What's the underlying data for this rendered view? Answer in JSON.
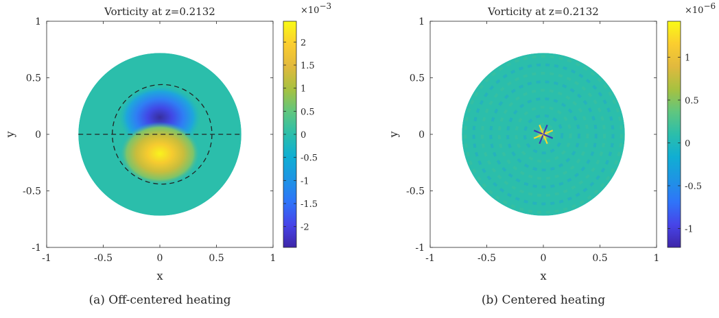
{
  "chart_data": [
    {
      "type": "heatmap",
      "title": "Vorticity at z=0.2132",
      "xlabel": "x",
      "ylabel": "y",
      "xlim": [
        -1,
        1
      ],
      "ylim": [
        -1,
        1
      ],
      "xticks": [
        "-1",
        "-0.5",
        "0",
        "0.5",
        "1"
      ],
      "yticks": [
        "-1",
        "-0.5",
        "0",
        "0.5",
        "1"
      ],
      "domain_radius": 0.72,
      "colorbar": {
        "multiplier": "×10",
        "exponent": "−3",
        "range": [
          -2.45,
          2.45
        ],
        "ticks": [
          {
            "value": 2,
            "label": "2"
          },
          {
            "value": 1.5,
            "label": "1.5"
          },
          {
            "value": 1,
            "label": "1"
          },
          {
            "value": 0.5,
            "label": "0.5"
          },
          {
            "value": 0,
            "label": "0"
          },
          {
            "value": -0.5,
            "label": "-0.5"
          },
          {
            "value": -1,
            "label": "-1"
          },
          {
            "value": -1.5,
            "label": "-1.5"
          },
          {
            "value": -2,
            "label": "-2"
          }
        ]
      },
      "features": {
        "negative_lobe_center": [
          0,
          0.15
        ],
        "positive_lobe_center": [
          0,
          -0.17
        ],
        "peak_magnitude": 2.45,
        "dashed_circle_center": [
          0.02,
          0
        ],
        "dashed_circle_radius": 0.44,
        "dashed_line_y": 0
      },
      "caption": "(a) Off-centered heating"
    },
    {
      "type": "heatmap",
      "title": "Vorticity at z=0.2132",
      "xlabel": "x",
      "ylabel": "y",
      "xlim": [
        -1,
        1
      ],
      "ylim": [
        -1,
        1
      ],
      "xticks": [
        "-1",
        "-0.5",
        "0",
        "0.5",
        "1"
      ],
      "yticks": [
        "-1",
        "-0.5",
        "0",
        "0.5",
        "1"
      ],
      "domain_radius": 0.72,
      "colorbar": {
        "multiplier": "×10",
        "exponent": "−6",
        "range": [
          -1.22,
          1.42
        ],
        "ticks": [
          {
            "value": 1,
            "label": "1"
          },
          {
            "value": 0.5,
            "label": "0.5"
          },
          {
            "value": 0,
            "label": "0"
          },
          {
            "value": -0.5,
            "label": "-0.5"
          },
          {
            "value": -1,
            "label": "-1"
          }
        ]
      },
      "features": {
        "background_value": 0.15,
        "central_star_magnitude": 1.4
      },
      "caption": "(b) Centered heating"
    }
  ],
  "colormap": [
    "#3e26a8",
    "#4744e8",
    "#2f74f9",
    "#1e94e4",
    "#10aed3",
    "#2bbeab",
    "#60c67f",
    "#a7c140",
    "#e1b93e",
    "#fbcd2f",
    "#f9fb15"
  ]
}
